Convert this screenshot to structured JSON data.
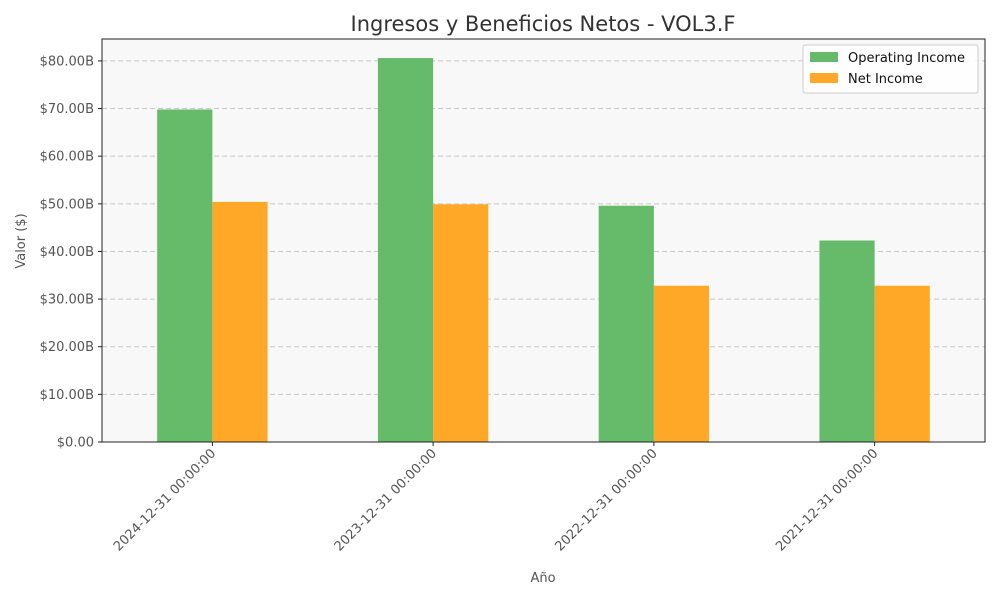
{
  "chart_data": {
    "type": "bar",
    "title": "Ingresos y Beneficios Netos - VOL3.F",
    "xlabel": "Año",
    "ylabel": "Valor ($)",
    "categories": [
      "2024-12-31 00:00:00",
      "2023-12-31 00:00:00",
      "2022-12-31 00:00:00",
      "2021-12-31 00:00:00"
    ],
    "series": [
      {
        "name": "Operating Income",
        "color": "#66bb6a",
        "values": [
          69.8,
          80.6,
          49.6,
          42.3
        ]
      },
      {
        "name": "Net Income",
        "color": "#ffa726",
        "values": [
          50.4,
          49.9,
          32.8,
          32.8
        ]
      }
    ],
    "yticks": [
      0,
      10,
      20,
      30,
      40,
      50,
      60,
      70,
      80
    ],
    "ytick_labels": [
      "$0.00",
      "$10.00B",
      "$20.00B",
      "$30.00B",
      "$40.00B",
      "$50.00B",
      "$60.00B",
      "$70.00B",
      "$80.00B"
    ],
    "ylim": [
      0,
      84.6
    ],
    "grid": "horizontal dashed",
    "legend_position": "top-right",
    "plot_background": "#f8f8f8"
  }
}
